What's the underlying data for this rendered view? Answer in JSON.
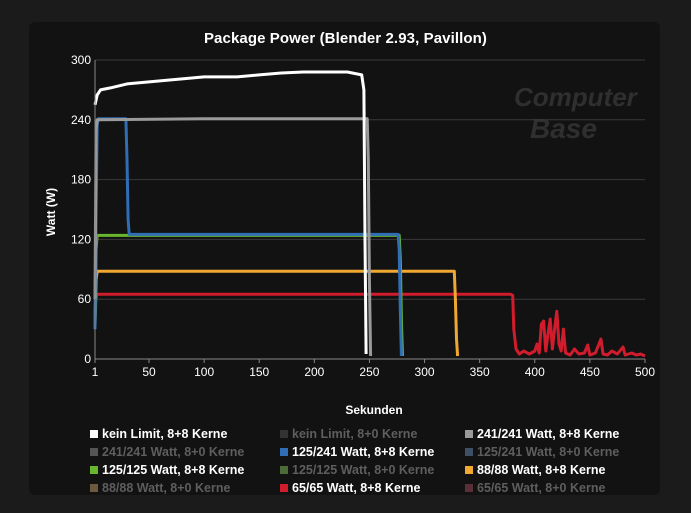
{
  "chart_data": {
    "type": "line",
    "title": "Package Power (Blender 2.93, Pavillon)",
    "xlabel": "Sekunden",
    "ylabel": "Watt (W)",
    "xlim": [
      1,
      500
    ],
    "ylim": [
      0,
      300
    ],
    "x_ticks": [
      1,
      50,
      100,
      150,
      200,
      250,
      300,
      350,
      400,
      450,
      500
    ],
    "y_ticks": [
      0,
      60,
      120,
      180,
      240,
      300
    ],
    "grid": true,
    "legend_position": "bottom",
    "series": [
      {
        "name": "kein Limit, 8+8 Kerne",
        "color": "#ffffff",
        "visible": true,
        "points": [
          [
            1,
            255
          ],
          [
            3,
            265
          ],
          [
            6,
            270
          ],
          [
            15,
            272
          ],
          [
            30,
            276
          ],
          [
            50,
            278
          ],
          [
            80,
            281
          ],
          [
            100,
            283
          ],
          [
            130,
            283
          ],
          [
            150,
            285
          ],
          [
            170,
            287
          ],
          [
            190,
            288
          ],
          [
            210,
            288
          ],
          [
            230,
            288
          ],
          [
            243,
            285
          ],
          [
            245,
            270
          ],
          [
            246,
            120
          ],
          [
            247,
            5
          ]
        ]
      },
      {
        "name": "kein Limit, 8+0 Kerne",
        "color": "#333333",
        "visible": false,
        "points": []
      },
      {
        "name": "241/241 Watt, 8+8 Kerne",
        "color": "#9a9a9a",
        "visible": true,
        "points": [
          [
            1,
            60
          ],
          [
            2,
            230
          ],
          [
            3,
            240
          ],
          [
            100,
            241
          ],
          [
            200,
            241
          ],
          [
            248,
            241
          ],
          [
            249,
            200
          ],
          [
            250,
            80
          ],
          [
            251,
            3
          ]
        ]
      },
      {
        "name": "241/241 Watt, 8+0 Kerne",
        "color": "#555555",
        "visible": false,
        "points": []
      },
      {
        "name": "125/241 Watt, 8+8 Kerne",
        "color": "#2f6db5",
        "visible": true,
        "points": [
          [
            1,
            30
          ],
          [
            2,
            150
          ],
          [
            3,
            235
          ],
          [
            4,
            241
          ],
          [
            29,
            241
          ],
          [
            30,
            200
          ],
          [
            31,
            140
          ],
          [
            32,
            125
          ],
          [
            100,
            125
          ],
          [
            200,
            125
          ],
          [
            276,
            125
          ],
          [
            277,
            110
          ],
          [
            278,
            50
          ],
          [
            279,
            3
          ]
        ]
      },
      {
        "name": "125/241 Watt, 8+0 Kerne",
        "color": "#3e4f66",
        "visible": false,
        "points": []
      },
      {
        "name": "125/125 Watt, 8+8 Kerne",
        "color": "#69b52e",
        "visible": true,
        "points": [
          [
            1,
            30
          ],
          [
            2,
            110
          ],
          [
            3,
            124
          ],
          [
            100,
            124
          ],
          [
            200,
            124
          ],
          [
            277,
            124
          ],
          [
            278,
            100
          ],
          [
            279,
            40
          ],
          [
            280,
            3
          ]
        ]
      },
      {
        "name": "125/125 Watt, 8+0 Kerne",
        "color": "#4c6b36",
        "visible": false,
        "points": []
      },
      {
        "name": "88/88 Watt, 8+8 Kerne",
        "color": "#f0a830",
        "visible": true,
        "points": [
          [
            1,
            35
          ],
          [
            2,
            80
          ],
          [
            3,
            88
          ],
          [
            100,
            88
          ],
          [
            200,
            88
          ],
          [
            300,
            88
          ],
          [
            327,
            88
          ],
          [
            328,
            60
          ],
          [
            329,
            20
          ],
          [
            330,
            3
          ]
        ]
      },
      {
        "name": "88/88 Watt, 8+0 Kerne",
        "color": "#6d5a3e",
        "visible": false,
        "points": []
      },
      {
        "name": "65/65 Watt, 8+8 Kerne",
        "color": "#d01c2c",
        "visible": true,
        "points": [
          [
            1,
            40
          ],
          [
            2,
            62
          ],
          [
            3,
            65
          ],
          [
            100,
            65
          ],
          [
            200,
            65
          ],
          [
            300,
            65
          ],
          [
            378,
            65
          ],
          [
            380,
            64
          ],
          [
            381,
            30
          ],
          [
            383,
            10
          ],
          [
            386,
            5
          ],
          [
            390,
            8
          ],
          [
            395,
            5
          ],
          [
            400,
            8
          ],
          [
            402,
            15
          ],
          [
            404,
            6
          ],
          [
            406,
            35
          ],
          [
            408,
            38
          ],
          [
            410,
            8
          ],
          [
            412,
            25
          ],
          [
            414,
            40
          ],
          [
            416,
            10
          ],
          [
            418,
            30
          ],
          [
            420,
            48
          ],
          [
            422,
            15
          ],
          [
            424,
            8
          ],
          [
            426,
            30
          ],
          [
            428,
            6
          ],
          [
            432,
            4
          ],
          [
            436,
            10
          ],
          [
            440,
            5
          ],
          [
            445,
            6
          ],
          [
            448,
            14
          ],
          [
            450,
            4
          ],
          [
            455,
            6
          ],
          [
            460,
            20
          ],
          [
            462,
            5
          ],
          [
            466,
            4
          ],
          [
            470,
            8
          ],
          [
            475,
            5
          ],
          [
            480,
            12
          ],
          [
            482,
            4
          ],
          [
            488,
            6
          ],
          [
            492,
            4
          ],
          [
            496,
            5
          ],
          [
            500,
            3
          ]
        ]
      },
      {
        "name": "65/65 Watt, 8+0 Kerne",
        "color": "#5a2f3a",
        "visible": false,
        "points": []
      }
    ]
  },
  "watermark": {
    "line1": "Computer",
    "line2": "Base"
  }
}
